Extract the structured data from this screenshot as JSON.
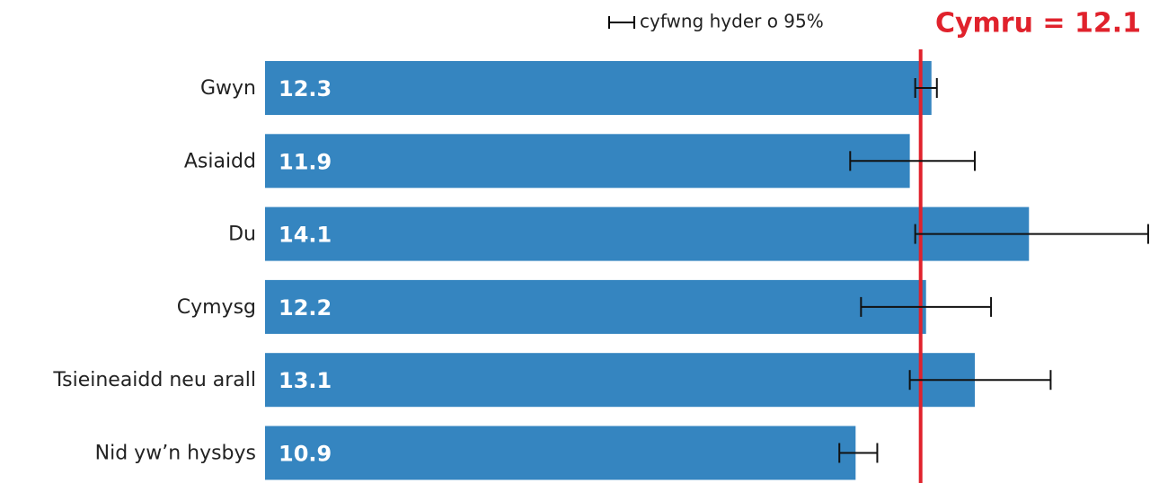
{
  "chart_data": {
    "type": "barh",
    "categories": [
      "Gwyn",
      "Asiaidd",
      "Du",
      "Cymysg",
      "Tsieineaidd neu arall",
      "Nid yw’n hysbys"
    ],
    "values": [
      12.3,
      11.9,
      14.1,
      12.2,
      13.1,
      10.9
    ],
    "ci_low": [
      12.0,
      10.8,
      12.0,
      11.0,
      11.9,
      10.6
    ],
    "ci_high": [
      12.4,
      13.1,
      16.3,
      13.4,
      14.5,
      11.3
    ],
    "color": "#3585c0",
    "xlim": [
      0,
      16.45
    ],
    "legend": "cyfwng hyder o 95%",
    "reference": {
      "label": "Cymru = 12.1",
      "value": 12.1,
      "color": "#e0222c"
    }
  }
}
